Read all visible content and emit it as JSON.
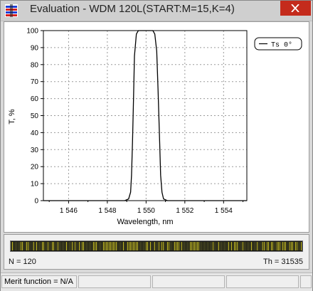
{
  "window": {
    "title": "Evaluation - WDM 120L(START:M=15,K=4)",
    "close_glyph": "✕",
    "accent_close": "#c42b1c"
  },
  "chart_data": {
    "type": "line",
    "xlabel": "Wavelength, nm",
    "ylabel": "T, %",
    "xlim": [
      1544.7,
      1555.2
    ],
    "ylim": [
      0,
      100
    ],
    "x_ticks": [
      1546,
      1548,
      1550,
      1552,
      1554
    ],
    "x_tick_labels": [
      "1 546",
      "1 548",
      "1 550",
      "1 552",
      "1 554"
    ],
    "y_ticks": [
      0,
      10,
      20,
      30,
      40,
      50,
      60,
      70,
      80,
      90,
      100
    ],
    "y_tick_labels": [
      "0",
      "10",
      "20",
      "30",
      "40",
      "50",
      "60",
      "70",
      "80",
      "90",
      "100"
    ],
    "grid": true,
    "legend_position": "top-right",
    "series": [
      {
        "name": "Ts 0°",
        "color": "#000000",
        "x": [
          1544.7,
          1548.9,
          1549.1,
          1549.2,
          1549.25,
          1549.3,
          1549.35,
          1549.4,
          1549.5,
          1549.6,
          1549.8,
          1550.0,
          1550.2,
          1550.35,
          1550.45,
          1550.55,
          1550.62,
          1550.7,
          1550.75,
          1550.82,
          1550.9,
          1551.1,
          1555.2
        ],
        "values": [
          0,
          0,
          1,
          5,
          15,
          35,
          60,
          85,
          98,
          100,
          100,
          100,
          100,
          100,
          98,
          88,
          65,
          35,
          15,
          5,
          1,
          0,
          0
        ]
      }
    ]
  },
  "panel": {
    "n_label": "N = 120",
    "th_label": "Th = 31535"
  },
  "statusbar": {
    "merit": "Merit function = N/A"
  }
}
